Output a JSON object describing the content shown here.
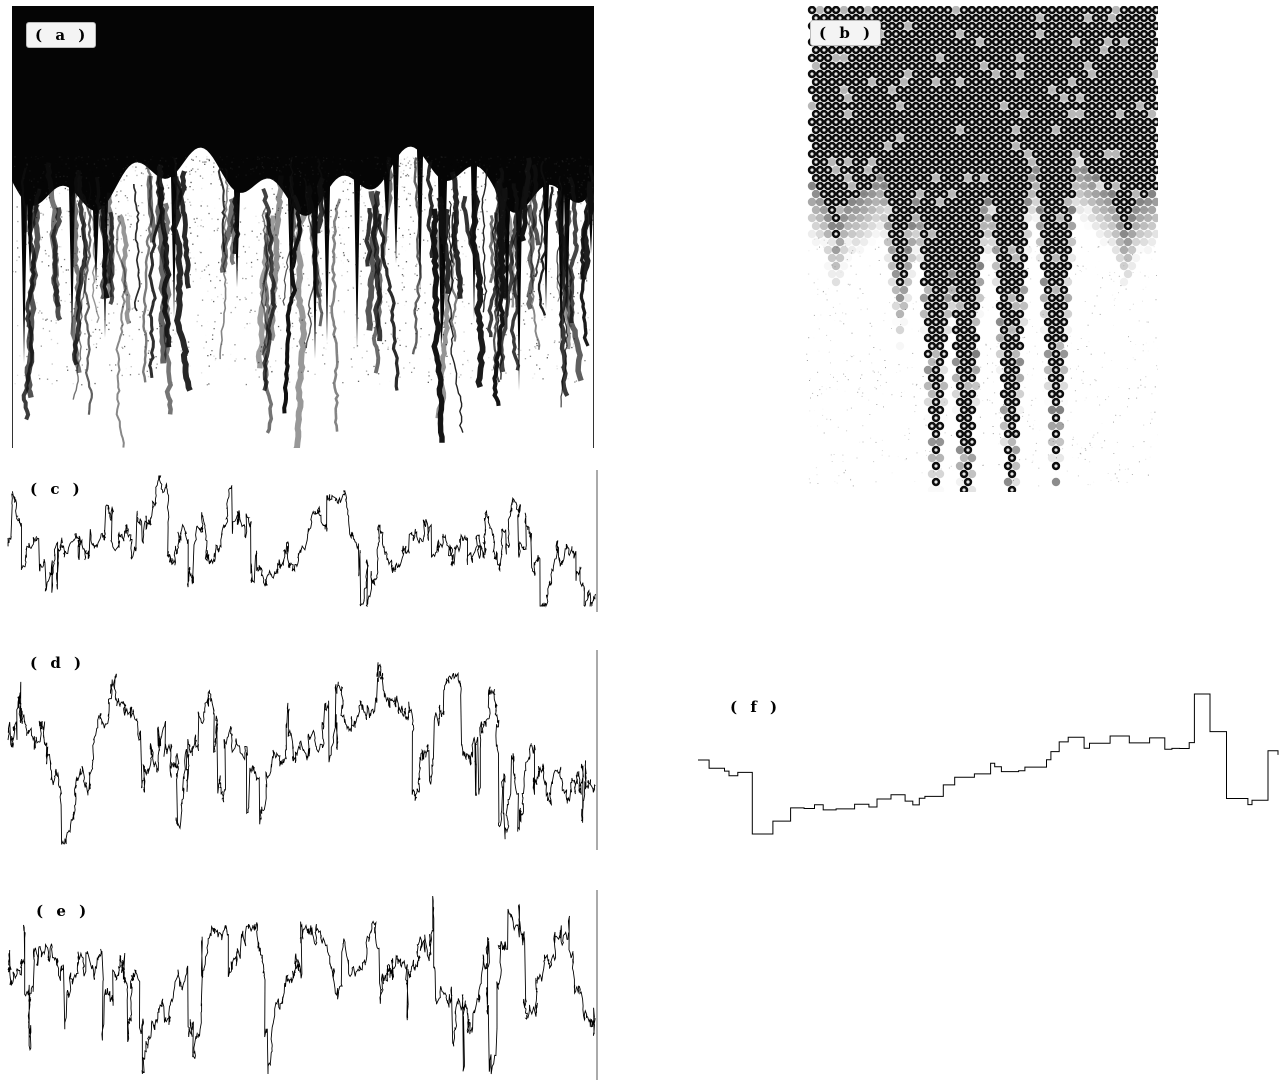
{
  "figure": {
    "panels": [
      {
        "id": "a",
        "label": "( a )",
        "kind": "image",
        "description_kind": "dense fingering growth, black upper region with downward streaks"
      },
      {
        "id": "b",
        "label": "( b )",
        "kind": "image",
        "description_kind": "particle packing with downward fingers"
      },
      {
        "id": "c",
        "label": "( c )",
        "kind": "trace"
      },
      {
        "id": "d",
        "label": "( d )",
        "kind": "trace"
      },
      {
        "id": "e",
        "label": "( e )",
        "kind": "trace"
      },
      {
        "id": "f",
        "label": "( f )",
        "kind": "trace"
      }
    ]
  }
}
